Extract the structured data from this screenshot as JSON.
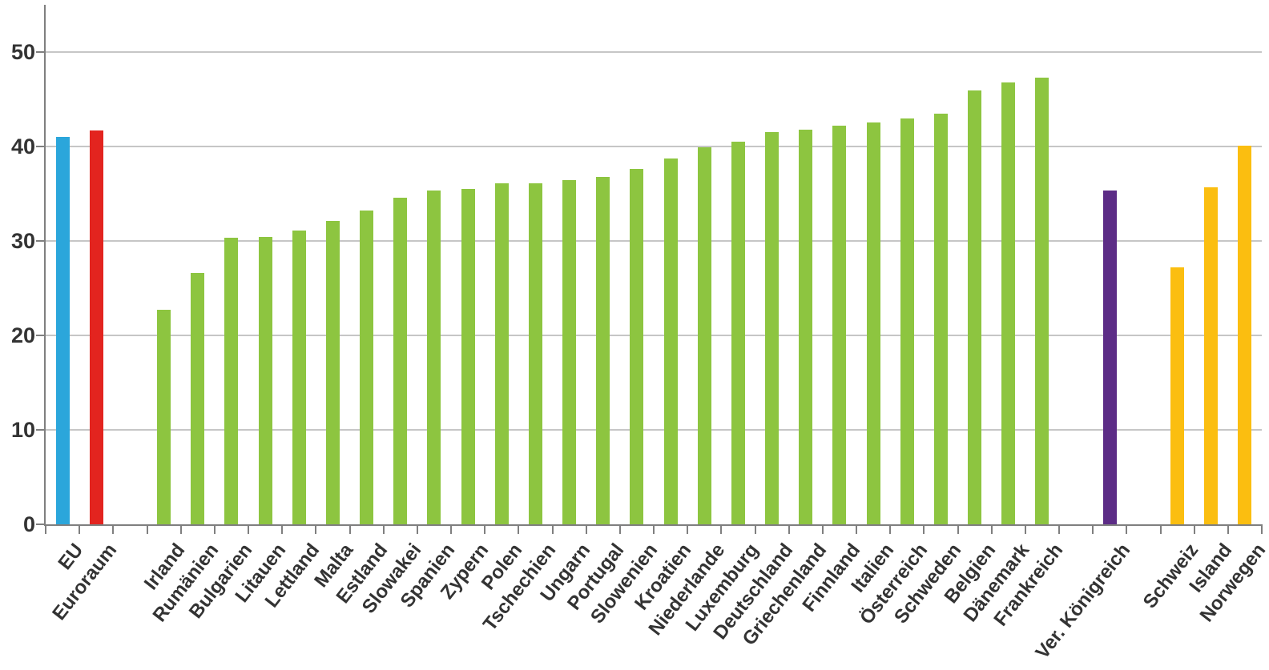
{
  "chart_data": {
    "type": "bar",
    "ylim": [
      0,
      55
    ],
    "yticks": [
      0,
      10,
      20,
      30,
      40,
      50
    ],
    "grid": true,
    "axis_color": "#7f7f7f",
    "gridline_color": "#c6c6c6",
    "label_color": "#333333",
    "groups": [
      {
        "name": "aggregates",
        "bars": [
          {
            "label": "EU",
            "value": 41.0,
            "color": "#2BA6DB"
          },
          {
            "label": "Euroraum",
            "value": 41.7,
            "color": "#E3241F"
          }
        ]
      },
      {
        "name": "eu-mitgliedstaaten",
        "bars": [
          {
            "label": "Irland",
            "value": 22.7,
            "color": "#8DC540"
          },
          {
            "label": "Rumänien",
            "value": 26.6,
            "color": "#8DC540"
          },
          {
            "label": "Bulgarien",
            "value": 30.3,
            "color": "#8DC540"
          },
          {
            "label": "Litauen",
            "value": 30.4,
            "color": "#8DC540"
          },
          {
            "label": "Lettland",
            "value": 31.1,
            "color": "#8DC540"
          },
          {
            "label": "Malta",
            "value": 32.1,
            "color": "#8DC540"
          },
          {
            "label": "Estland",
            "value": 33.2,
            "color": "#8DC540"
          },
          {
            "label": "Slowakei",
            "value": 34.6,
            "color": "#8DC540"
          },
          {
            "label": "Spanien",
            "value": 35.3,
            "color": "#8DC540"
          },
          {
            "label": "Zypern",
            "value": 35.5,
            "color": "#8DC540"
          },
          {
            "label": "Polen",
            "value": 36.1,
            "color": "#8DC540"
          },
          {
            "label": "Tschechien",
            "value": 36.1,
            "color": "#8DC540"
          },
          {
            "label": "Ungarn",
            "value": 36.4,
            "color": "#8DC540"
          },
          {
            "label": "Portugal",
            "value": 36.8,
            "color": "#8DC540"
          },
          {
            "label": "Slowenien",
            "value": 37.6,
            "color": "#8DC540"
          },
          {
            "label": "Kroatien",
            "value": 38.7,
            "color": "#8DC540"
          },
          {
            "label": "Niederlande",
            "value": 39.9,
            "color": "#8DC540"
          },
          {
            "label": "Luxemburg",
            "value": 40.5,
            "color": "#8DC540"
          },
          {
            "label": "Deutschland",
            "value": 41.5,
            "color": "#8DC540"
          },
          {
            "label": "Griechenland",
            "value": 41.8,
            "color": "#8DC540"
          },
          {
            "label": "Finnland",
            "value": 42.2,
            "color": "#8DC540"
          },
          {
            "label": "Italien",
            "value": 42.5,
            "color": "#8DC540"
          },
          {
            "label": "Österreich",
            "value": 43.0,
            "color": "#8DC540"
          },
          {
            "label": "Schweden",
            "value": 43.5,
            "color": "#8DC540"
          },
          {
            "label": "Belgien",
            "value": 45.9,
            "color": "#8DC540"
          },
          {
            "label": "Dänemark",
            "value": 46.8,
            "color": "#8DC540"
          },
          {
            "label": "Frankreich",
            "value": 47.3,
            "color": "#8DC540"
          }
        ]
      },
      {
        "name": "vereinigtes-koenigreich",
        "bars": [
          {
            "label": "Ver. Königreich",
            "value": 35.3,
            "color": "#5C2C86"
          }
        ]
      },
      {
        "name": "efta",
        "bars": [
          {
            "label": "Schweiz",
            "value": 27.2,
            "color": "#FBBE10"
          },
          {
            "label": "Island",
            "value": 35.7,
            "color": "#FBBE10"
          },
          {
            "label": "Norwegen",
            "value": 40.1,
            "color": "#FBBE10"
          }
        ]
      }
    ]
  }
}
